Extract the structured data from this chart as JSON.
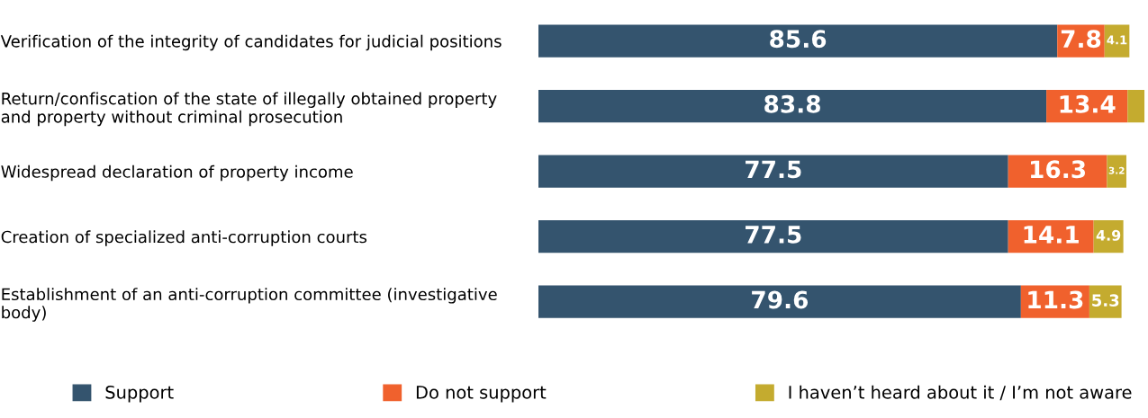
{
  "chart_data": {
    "type": "bar",
    "orientation": "horizontal",
    "stacked": true,
    "categories": [
      "Verification of the integrity of candidates for judicial positions",
      "Return/confiscation of the state of illegally obtained property\nand property without criminal prosecution",
      "Widespread declaration of property income",
      "Creation of specialized anti-corruption courts",
      "Establishment of an anti-corruption committee (investigative\nbody)"
    ],
    "series": [
      {
        "name": "Support",
        "color": "#34546e",
        "values": [
          85.6,
          83.8,
          77.5,
          77.5,
          79.6
        ],
        "value_labels": [
          "85.6",
          "83.8",
          "77.5",
          "77.5",
          "79.6"
        ]
      },
      {
        "name": "Do not support",
        "color": "#f0612d",
        "values": [
          7.8,
          13.4,
          16.3,
          14.1,
          11.3
        ],
        "value_labels": [
          "7.8",
          "13.4",
          "16.3",
          "14.1",
          "11.3"
        ]
      },
      {
        "name": "I haven’t heard about it / I’m not aware",
        "color": "#c4ab2f",
        "values": [
          4.1,
          2.8,
          3.2,
          4.9,
          5.3
        ],
        "value_labels": [
          "4.1",
          null,
          "3.2",
          "4.9",
          "5.3"
        ]
      }
    ],
    "xlim": [
      0,
      100
    ],
    "tick_labels": false,
    "grid": false,
    "legend": "bottom"
  }
}
